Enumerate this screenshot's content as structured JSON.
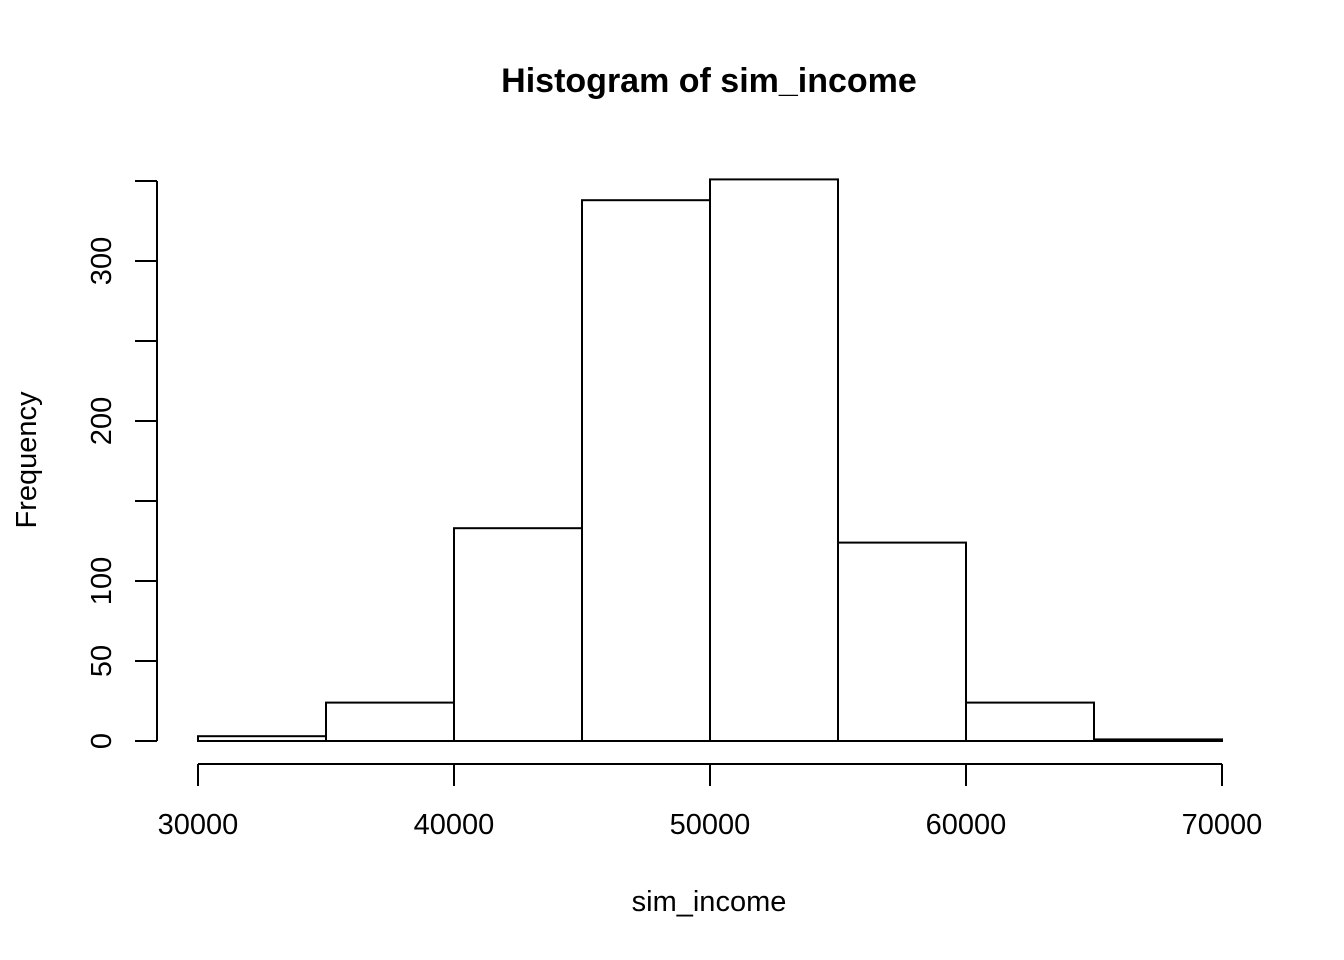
{
  "chart_data": {
    "type": "bar",
    "title": "Histogram of sim_income",
    "xlabel": "sim_income",
    "ylabel": "Frequency",
    "bins": [
      {
        "start": 30000,
        "end": 35000,
        "count": 3
      },
      {
        "start": 35000,
        "end": 40000,
        "count": 24
      },
      {
        "start": 40000,
        "end": 45000,
        "count": 133
      },
      {
        "start": 45000,
        "end": 50000,
        "count": 338
      },
      {
        "start": 50000,
        "end": 55000,
        "count": 351
      },
      {
        "start": 55000,
        "end": 60000,
        "count": 124
      },
      {
        "start": 60000,
        "end": 65000,
        "count": 24
      },
      {
        "start": 65000,
        "end": 70000,
        "count": 1
      }
    ],
    "xlim": [
      30000,
      70000
    ],
    "ylim": [
      0,
      350
    ],
    "x_ticks": [
      30000,
      40000,
      50000,
      60000,
      70000
    ],
    "y_ticks": [
      0,
      50,
      100,
      150,
      200,
      250,
      300,
      350
    ],
    "y_tick_labels": [
      "0",
      "50",
      "100",
      "",
      "200",
      "",
      "300",
      ""
    ],
    "grid": false,
    "legend": "none",
    "bar_fill": "#ffffff",
    "bar_stroke": "#000000"
  }
}
